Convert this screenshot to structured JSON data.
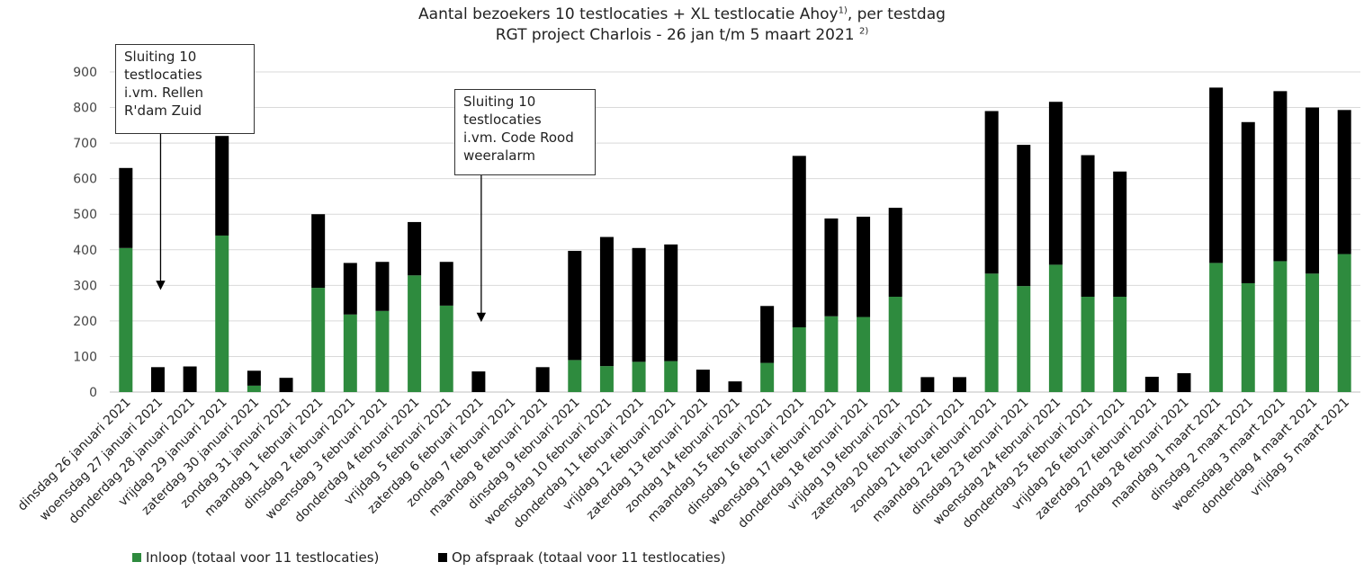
{
  "chart_data": {
    "type": "bar",
    "stacked": true,
    "title_line1": "Aantal bezoekers 10 testlocaties + XL testlocatie Ahoy",
    "title_line1_sup": "1)",
    "title_line1_suffix": ", per testdag",
    "title_line2": "RGT project Charlois - 26 jan t/m 5 maart 2021",
    "title_line2_sup": "2)",
    "ylim": [
      0,
      900
    ],
    "yticks": [
      0,
      100,
      200,
      300,
      400,
      500,
      600,
      700,
      800,
      900
    ],
    "grid": true,
    "legend_position": "bottom-left",
    "categories": [
      "dinsdag 26 januari 2021",
      "woensdag 27 januari 2021",
      "donderdag 28 januari 2021",
      "vrijdag 29 januari 2021",
      "zaterdag 30 januari 2021",
      "zondag 31 januari 2021",
      "maandag 1 februari 2021",
      "dinsdag 2 februari 2021",
      "woensdag 3 februari 2021",
      "donderdag 4 februari 2021",
      "vrijdag 5 februari 2021",
      "zaterdag 6 februari 2021",
      "zondag 7 februari 2021",
      "maandag 8 februari 2021",
      "dinsdag 9 februari 2021",
      "woensdag 10 februari 2021",
      "donderdag 11 februari 2021",
      "vrijdag 12 februari 2021",
      "zaterdag 13 februari 2021",
      "zondag 14 februari 2021",
      "maandag 15 februari 2021",
      "dinsdag 16 februari 2021",
      "woensdag 17 februari 2021",
      "donderdag 18 februari 2021",
      "vrijdag 19 februari 2021",
      "zaterdag 20 februari 2021",
      "zondag 21 februari 2021",
      "maandag 22 februari 2021",
      "dinsdag 23 februari 2021",
      "woensdag 24 februari 2021",
      "donderdag 25 februari 2021",
      "vrijdag 26 februari 2021",
      "zaterdag 27 februari 2021",
      "zondag 28 februari 2021",
      "maandag 1 maart 2021",
      "dinsdag 2 maart 2021",
      "woensdag 3 maart 2021",
      "donderdag 4 maart 2021",
      "vrijdag 5 maart 2021"
    ],
    "series": [
      {
        "name": "Inloop (totaal voor 11 testlocaties)",
        "color": "#2e8b3e",
        "values": [
          405,
          0,
          0,
          440,
          18,
          0,
          293,
          218,
          228,
          328,
          243,
          0,
          0,
          0,
          90,
          73,
          85,
          87,
          0,
          0,
          82,
          182,
          213,
          211,
          268,
          0,
          0,
          333,
          298,
          358,
          268,
          268,
          0,
          0,
          363,
          306,
          368,
          333,
          388
        ]
      },
      {
        "name": "Op afspraak (totaal voor 11 testlocaties)",
        "color": "#000000",
        "values": [
          225,
          70,
          72,
          280,
          42,
          40,
          207,
          145,
          138,
          150,
          123,
          58,
          0,
          70,
          307,
          363,
          320,
          328,
          63,
          30,
          160,
          482,
          275,
          282,
          250,
          42,
          42,
          457,
          397,
          458,
          398,
          352,
          43,
          53,
          493,
          453,
          478,
          467,
          405
        ]
      }
    ],
    "annotations": [
      {
        "lines": [
          "Sluiting 10",
          "testlocaties",
          "i.vm. Rellen",
          "R'dam Zuid"
        ],
        "arrow_to_index": 1,
        "arrow_to_value": 300
      },
      {
        "lines": [
          "Sluiting 10",
          "testlocaties",
          "i.vm. Code Rood",
          "weeralarm"
        ],
        "arrow_to_index": 11,
        "arrow_to_value": 210
      }
    ]
  }
}
